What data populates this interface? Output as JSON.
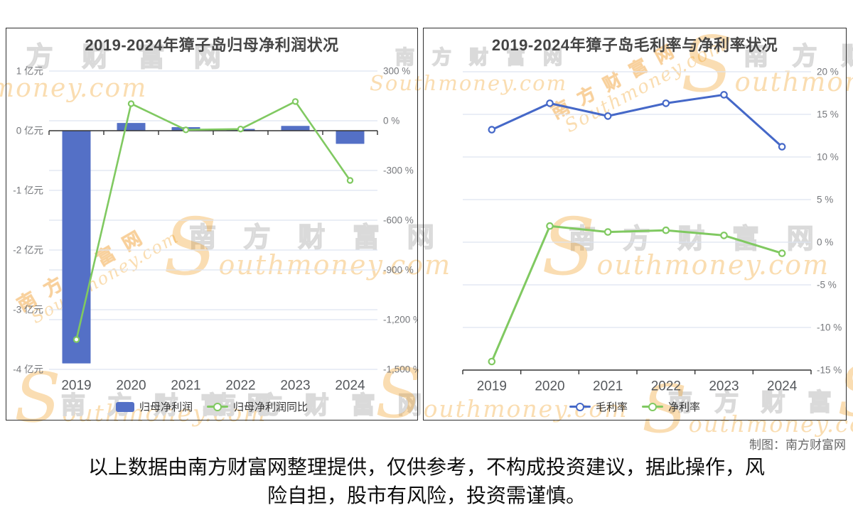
{
  "watermark": {
    "site_cn": "南方财富网",
    "site_en": "Southmoney.com"
  },
  "colors": {
    "bar_blue": "#5470c6",
    "line_blue": "#4568c8",
    "line_green": "#80c961",
    "grid": "#dde4f0",
    "axis_line": "#333333",
    "tick_label": "#76787c",
    "year_label": "#55585c",
    "title": "#454545",
    "watermark_gray": "#e9e9e9",
    "watermark_orange": "#f3af46"
  },
  "chart_data": [
    {
      "type": "bar",
      "title": "2019-2024年獐子岛归母净利润状况",
      "categories": [
        "2019",
        "2020",
        "2021",
        "2022",
        "2023",
        "2024"
      ],
      "series": [
        {
          "name": "归母净利润",
          "kind": "bar",
          "axis": "left",
          "unit": "亿元",
          "color": "#5470c6",
          "values": [
            -3.9,
            0.13,
            0.06,
            0.03,
            0.08,
            -0.22
          ]
        },
        {
          "name": "归母净利润同比",
          "kind": "line",
          "axis": "right",
          "unit": "%",
          "color": "#80c961",
          "values": [
            -1320,
            103,
            -55,
            -50,
            116,
            -360
          ]
        }
      ],
      "left_axis": {
        "min": -4,
        "max": 1,
        "tick_labels": [
          "1 亿元",
          "0 亿元",
          "-1 亿元",
          "-2 亿元",
          "-3 亿元",
          "-4 亿元"
        ]
      },
      "right_axis": {
        "min": -1500,
        "max": 300,
        "tick_labels": [
          "300 %",
          "0 %",
          "-300 %",
          "-600 %",
          "-900 %",
          "-1,200 %",
          "-1,500 %"
        ]
      },
      "legend_position": "bottom",
      "grid": true
    },
    {
      "type": "line",
      "title": "2019-2024年獐子岛毛利率与净利率状况",
      "categories": [
        "2019",
        "2020",
        "2021",
        "2022",
        "2023",
        "2024"
      ],
      "series": [
        {
          "name": "毛利率",
          "kind": "line",
          "axis": "right",
          "unit": "%",
          "color": "#4568c8",
          "values": [
            13.2,
            16.3,
            14.8,
            16.3,
            17.3,
            11.2
          ]
        },
        {
          "name": "净利率",
          "kind": "line",
          "axis": "right",
          "unit": "%",
          "color": "#80c961",
          "values": [
            -14.0,
            1.9,
            1.2,
            1.4,
            0.8,
            -1.3
          ]
        }
      ],
      "right_axis": {
        "min": -15,
        "max": 20,
        "tick_labels": [
          "20 %",
          "15 %",
          "10 %",
          "5 %",
          "0 %",
          "-5 %",
          "-10 %",
          "-15 %"
        ]
      },
      "legend_position": "bottom",
      "grid": true
    }
  ],
  "footer": {
    "credit": "制图：南方财富网",
    "disclaimer_lines": [
      "以上数据由南方财富网整理提供，仅供参考，不构成投资建议，据此操作，风",
      "险自担，股市有风险，投资需谨慎。"
    ]
  }
}
